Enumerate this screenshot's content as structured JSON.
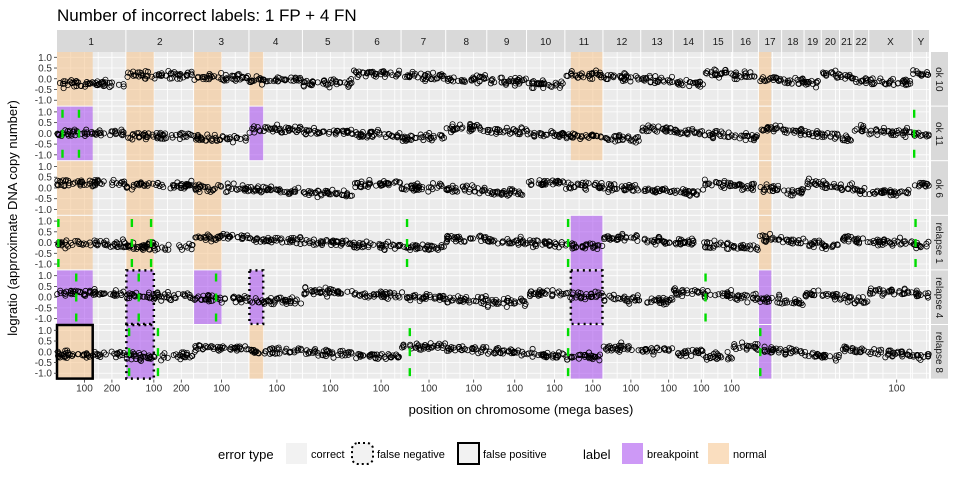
{
  "chart_data": {
    "type": "scatter",
    "title": "Number of incorrect labels: 1 FP + 4 FN",
    "xlabel": "position on chromosome (mega bases)",
    "ylabel": "logratio (approximate DNA copy number)",
    "ylim": [
      -1.25,
      1.2
    ],
    "y_ticks": [
      "1.0",
      "0.5",
      "0.0",
      "-0.5",
      "-1.0"
    ],
    "y_tick_values": [
      1.0,
      0.5,
      0.0,
      -0.5,
      -1.0
    ],
    "chromosomes": [
      {
        "name": "1",
        "len": 249,
        "ticks": [
          "100",
          "200"
        ]
      },
      {
        "name": "2",
        "len": 243,
        "ticks": [
          "100",
          "200"
        ]
      },
      {
        "name": "3",
        "len": 198,
        "ticks": [
          "100"
        ]
      },
      {
        "name": "4",
        "len": 191,
        "ticks": [
          "100"
        ]
      },
      {
        "name": "5",
        "len": 181,
        "ticks": [
          "100"
        ]
      },
      {
        "name": "6",
        "len": 171,
        "ticks": [
          "100"
        ]
      },
      {
        "name": "7",
        "len": 159,
        "ticks": [
          "100"
        ]
      },
      {
        "name": "8",
        "len": 146,
        "ticks": [
          "100"
        ]
      },
      {
        "name": "9",
        "len": 141,
        "ticks": [
          "100"
        ]
      },
      {
        "name": "10",
        "len": 136,
        "ticks": [
          "100"
        ]
      },
      {
        "name": "11",
        "len": 135,
        "ticks": [
          "100"
        ]
      },
      {
        "name": "12",
        "len": 134,
        "ticks": [
          "100"
        ]
      },
      {
        "name": "13",
        "len": 115,
        "ticks": [
          "100"
        ]
      },
      {
        "name": "14",
        "len": 107,
        "ticks": [
          "100"
        ]
      },
      {
        "name": "15",
        "len": 102,
        "ticks": [
          "100"
        ]
      },
      {
        "name": "16",
        "len": 90,
        "ticks": []
      },
      {
        "name": "17",
        "len": 81,
        "ticks": []
      },
      {
        "name": "18",
        "len": 78,
        "ticks": []
      },
      {
        "name": "19",
        "len": 59,
        "ticks": []
      },
      {
        "name": "20",
        "len": 63,
        "ticks": []
      },
      {
        "name": "21",
        "len": 48,
        "ticks": []
      },
      {
        "name": "22",
        "len": 51,
        "ticks": []
      },
      {
        "name": "X",
        "len": 155,
        "ticks": [
          "100"
        ]
      },
      {
        "name": "Y",
        "len": 59,
        "ticks": []
      }
    ],
    "profiles": [
      "ok 10",
      "ok 11",
      "ok 6",
      "relapse 1",
      "relapse 4",
      "relapse 8"
    ],
    "regions": [
      {
        "profile": 0,
        "chr": 0,
        "start": 0,
        "end": 130,
        "label": "normal",
        "error": "correct"
      },
      {
        "profile": 0,
        "chr": 1,
        "start": 0,
        "end": 100,
        "label": "normal",
        "error": "correct"
      },
      {
        "profile": 0,
        "chr": 2,
        "start": 0,
        "end": 100,
        "label": "normal",
        "error": "correct"
      },
      {
        "profile": 0,
        "chr": 3,
        "start": 0,
        "end": 50,
        "label": "normal",
        "error": "correct"
      },
      {
        "profile": 0,
        "chr": 10,
        "start": 20,
        "end": 135,
        "label": "normal",
        "error": "correct"
      },
      {
        "profile": 0,
        "chr": 16,
        "start": 0,
        "end": 45,
        "label": "normal",
        "error": "correct"
      },
      {
        "profile": 1,
        "chr": 0,
        "start": 0,
        "end": 130,
        "label": "breakpoint",
        "error": "correct"
      },
      {
        "profile": 1,
        "chr": 1,
        "start": 0,
        "end": 100,
        "label": "normal",
        "error": "correct"
      },
      {
        "profile": 1,
        "chr": 2,
        "start": 0,
        "end": 100,
        "label": "normal",
        "error": "correct"
      },
      {
        "profile": 1,
        "chr": 3,
        "start": 0,
        "end": 50,
        "label": "breakpoint",
        "error": "correct"
      },
      {
        "profile": 1,
        "chr": 10,
        "start": 20,
        "end": 135,
        "label": "normal",
        "error": "correct"
      },
      {
        "profile": 1,
        "chr": 16,
        "start": 0,
        "end": 45,
        "label": "normal",
        "error": "correct"
      },
      {
        "profile": 2,
        "chr": 0,
        "start": 0,
        "end": 130,
        "label": "normal",
        "error": "correct"
      },
      {
        "profile": 2,
        "chr": 1,
        "start": 0,
        "end": 100,
        "label": "normal",
        "error": "correct"
      },
      {
        "profile": 2,
        "chr": 2,
        "start": 0,
        "end": 100,
        "label": "normal",
        "error": "correct"
      },
      {
        "profile": 2,
        "chr": 16,
        "start": 0,
        "end": 45,
        "label": "normal",
        "error": "correct"
      },
      {
        "profile": 3,
        "chr": 0,
        "start": 0,
        "end": 130,
        "label": "normal",
        "error": "correct"
      },
      {
        "profile": 3,
        "chr": 1,
        "start": 0,
        "end": 100,
        "label": "normal",
        "error": "correct"
      },
      {
        "profile": 3,
        "chr": 2,
        "start": 0,
        "end": 100,
        "label": "normal",
        "error": "correct"
      },
      {
        "profile": 3,
        "chr": 10,
        "start": 20,
        "end": 135,
        "label": "breakpoint",
        "error": "correct"
      },
      {
        "profile": 3,
        "chr": 16,
        "start": 0,
        "end": 45,
        "label": "normal",
        "error": "correct"
      },
      {
        "profile": 4,
        "chr": 0,
        "start": 0,
        "end": 130,
        "label": "breakpoint",
        "error": "correct"
      },
      {
        "profile": 4,
        "chr": 1,
        "start": 0,
        "end": 100,
        "label": "breakpoint",
        "error": "false negative"
      },
      {
        "profile": 4,
        "chr": 2,
        "start": 0,
        "end": 100,
        "label": "breakpoint",
        "error": "correct"
      },
      {
        "profile": 4,
        "chr": 3,
        "start": 0,
        "end": 50,
        "label": "breakpoint",
        "error": "false negative"
      },
      {
        "profile": 4,
        "chr": 10,
        "start": 20,
        "end": 135,
        "label": "breakpoint",
        "error": "false negative"
      },
      {
        "profile": 4,
        "chr": 16,
        "start": 0,
        "end": 45,
        "label": "breakpoint",
        "error": "correct"
      },
      {
        "profile": 5,
        "chr": 0,
        "start": 0,
        "end": 130,
        "label": "normal",
        "error": "false positive"
      },
      {
        "profile": 5,
        "chr": 1,
        "start": 0,
        "end": 100,
        "label": "breakpoint",
        "error": "false negative"
      },
      {
        "profile": 5,
        "chr": 3,
        "start": 0,
        "end": 50,
        "label": "normal",
        "error": "correct"
      },
      {
        "profile": 5,
        "chr": 10,
        "start": 20,
        "end": 135,
        "label": "breakpoint",
        "error": "correct"
      },
      {
        "profile": 5,
        "chr": 16,
        "start": 0,
        "end": 45,
        "label": "breakpoint",
        "error": "correct"
      }
    ],
    "legend": {
      "error_type_title": "error type",
      "error_types": [
        "correct",
        "false negative",
        "false positive"
      ],
      "label_title": "label",
      "labels": [
        "breakpoint",
        "normal"
      ]
    },
    "colors": {
      "breakpoint": "#a445ee",
      "normal": "#f6c28b",
      "changepoint": "#00dd00",
      "points": "#000000",
      "strip": "#d9d9d9",
      "panel": "#ebebeb"
    }
  }
}
